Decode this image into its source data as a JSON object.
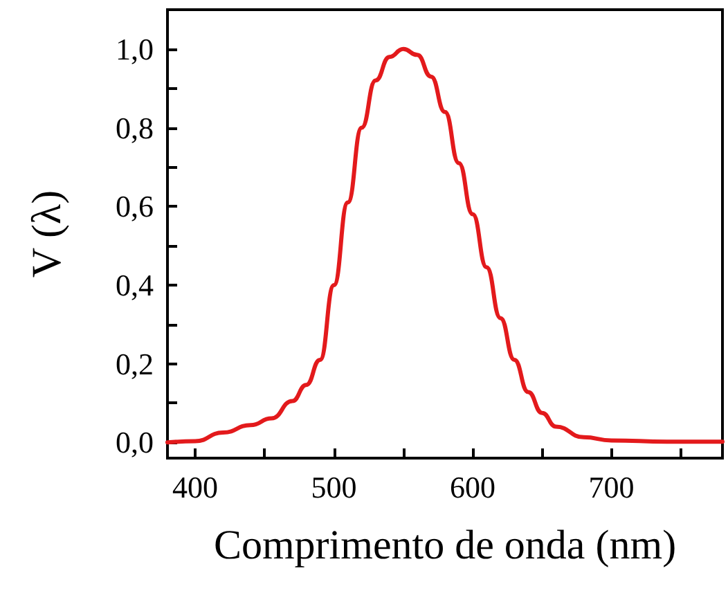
{
  "chart_data": {
    "type": "line",
    "xlabel": "Comprimento de onda (nm)",
    "ylabel": "V (λ)",
    "x": [
      380,
      400,
      420,
      440,
      455,
      470,
      480,
      490,
      500,
      510,
      520,
      530,
      540,
      550,
      560,
      570,
      580,
      590,
      600,
      610,
      620,
      630,
      640,
      650,
      660,
      680,
      700,
      740,
      780
    ],
    "series": [
      {
        "color": "#e31a1c",
        "values": [
          0.0,
          0.003,
          0.025,
          0.044,
          0.061,
          0.105,
          0.146,
          0.21,
          0.4,
          0.61,
          0.8,
          0.92,
          0.98,
          1.0,
          0.985,
          0.93,
          0.84,
          0.71,
          0.58,
          0.445,
          0.316,
          0.21,
          0.128,
          0.075,
          0.04,
          0.013,
          0.005,
          0.002,
          0.002
        ]
      }
    ],
    "xlim": [
      380,
      780
    ],
    "ylim": [
      -0.04,
      1.1
    ],
    "xticks": [
      400,
      {
        "value": 450,
        "label": null
      },
      500,
      {
        "value": 550,
        "label": null
      },
      600,
      {
        "value": 650,
        "label": null
      },
      700,
      {
        "value": 750,
        "label": null
      }
    ],
    "yticks": [
      {
        "value": 0,
        "label": "0,0"
      },
      {
        "value": 0.1,
        "label": null
      },
      {
        "value": 0.2,
        "label": "0,2"
      },
      {
        "value": 0.3,
        "label": null
      },
      {
        "value": 0.4,
        "label": "0,4"
      },
      {
        "value": 0.5,
        "label": null
      },
      {
        "value": 0.6,
        "label": "0,6"
      },
      {
        "value": 0.7,
        "label": null
      },
      {
        "value": 0.8,
        "label": "0,8"
      },
      {
        "value": 0.9,
        "label": null
      },
      {
        "value": 1.0,
        "label": "1,0"
      }
    ],
    "grid": false,
    "marker": "none",
    "line_style": "solid"
  }
}
